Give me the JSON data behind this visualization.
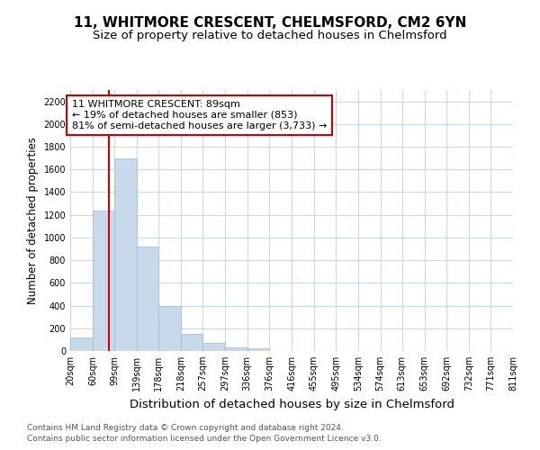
{
  "title": "11, WHITMORE CRESCENT, CHELMSFORD, CM2 6YN",
  "subtitle": "Size of property relative to detached houses in Chelmsford",
  "xlabel": "Distribution of detached houses by size in Chelmsford",
  "ylabel": "Number of detached properties",
  "bins": [
    20,
    60,
    99,
    139,
    178,
    218,
    257,
    297,
    336,
    376,
    416,
    455,
    495,
    534,
    574,
    613,
    653,
    692,
    732,
    771,
    811
  ],
  "counts": [
    120,
    1240,
    1700,
    920,
    400,
    150,
    70,
    30,
    20,
    0,
    0,
    0,
    0,
    0,
    0,
    0,
    0,
    0,
    0,
    0
  ],
  "bar_color": "#c9d9ec",
  "bar_edge_color": "#a0b8d0",
  "vline_x": 89,
  "vline_color": "#cc0000",
  "ylim": [
    0,
    2300
  ],
  "yticks": [
    0,
    200,
    400,
    600,
    800,
    1000,
    1200,
    1400,
    1600,
    1800,
    2000,
    2200
  ],
  "annotation_line1": "11 WHITMORE CRESCENT: 89sqm",
  "annotation_line2": "← 19% of detached houses are smaller (853)",
  "annotation_line3": "81% of semi-detached houses are larger (3,733) →",
  "annotation_box_color": "#ffffff",
  "annotation_box_edge": "#cc0000",
  "footer1": "Contains HM Land Registry data © Crown copyright and database right 2024.",
  "footer2": "Contains public sector information licensed under the Open Government Licence v3.0.",
  "background_color": "#ffffff",
  "grid_color": "#c8d8e8",
  "title_fontsize": 11,
  "subtitle_fontsize": 9.5,
  "tick_label_fontsize": 7,
  "ylabel_fontsize": 8.5,
  "xlabel_fontsize": 9.5,
  "annotation_fontsize": 8,
  "footer_fontsize": 6.5
}
